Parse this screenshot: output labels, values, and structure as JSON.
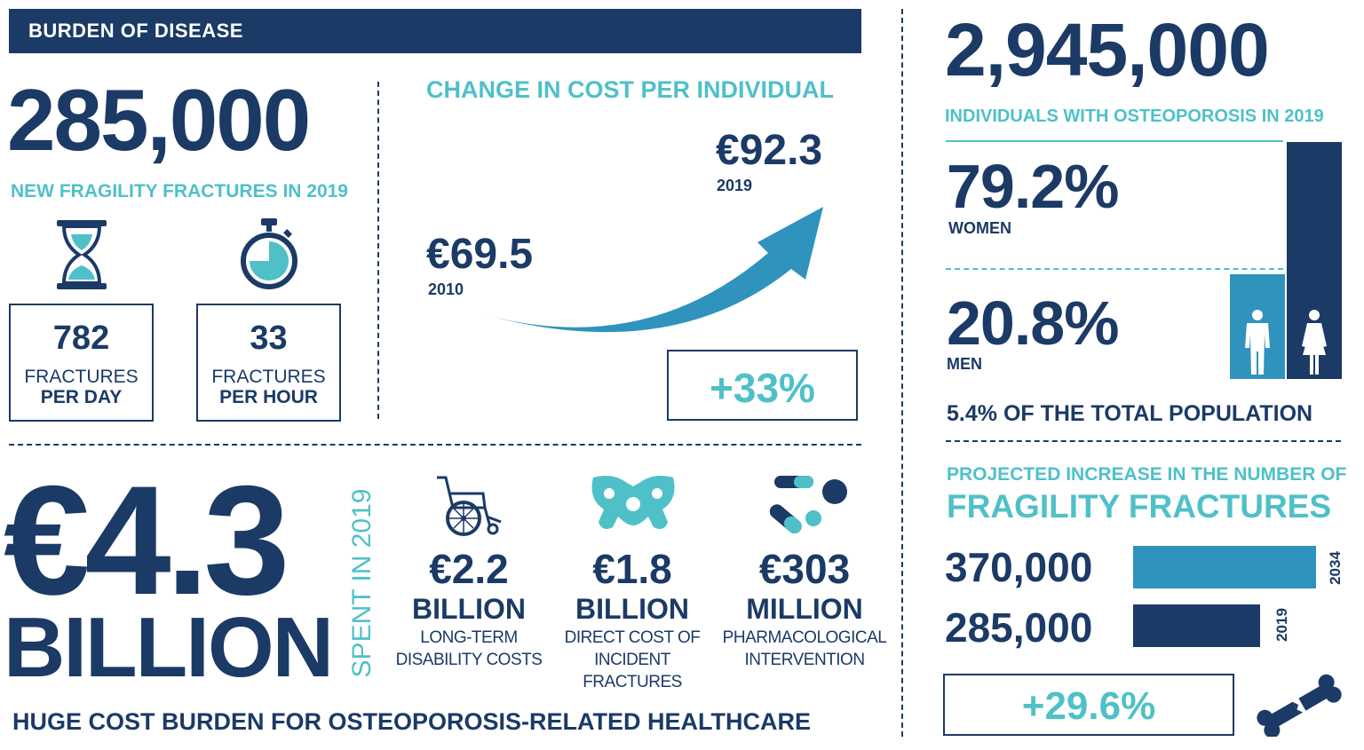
{
  "header": {
    "title": "BURDEN OF DISEASE"
  },
  "fractures": {
    "value": "285,000",
    "label": "NEW FRAGILITY FRACTURES IN 2019",
    "per_day_value": "782",
    "per_day_l1": "FRACTURES",
    "per_day_l2": "PER DAY",
    "per_hour_value": "33",
    "per_hour_l1": "FRACTURES",
    "per_hour_l2": "PER HOUR"
  },
  "cost_change": {
    "title": "CHANGE IN COST PER INDIVIDUAL",
    "start_value": "€69.5",
    "start_year": "2010",
    "end_value": "€92.3",
    "end_year": "2019",
    "change": "+33%"
  },
  "osteoporosis": {
    "value": "2,945,000",
    "label": "INDIVIDUALS WITH OSTEOPOROSIS IN 2019",
    "women_pct": "79.2%",
    "women_label": "WOMEN",
    "men_pct": "20.8%",
    "men_label": "MEN",
    "population_pct": "5.4%",
    "population_text": "OF THE TOTAL POPULATION"
  },
  "spending": {
    "value": "€4.3",
    "unit": "BILLION",
    "side_label": "SPENT IN 2019",
    "items": [
      {
        "value": "€2.2",
        "unit": "BILLION",
        "desc1": "LONG-TERM",
        "desc2": "DISABILITY COSTS",
        "desc3": ""
      },
      {
        "value": "€1.8",
        "unit": "BILLION",
        "desc1": "DIRECT COST OF",
        "desc2": "INCIDENT",
        "desc3": "FRACTURES"
      },
      {
        "value": "€303",
        "unit": "MILLION",
        "desc1": "PHARMACOLOGICAL",
        "desc2": "INTERVENTION",
        "desc3": ""
      }
    ],
    "footer": "HUGE COST BURDEN FOR OSTEOPOROSIS-RELATED HEALTHCARE"
  },
  "projection": {
    "title1": "PROJECTED INCREASE IN THE NUMBER OF",
    "title2": "FRAGILITY FRACTURES",
    "rows": [
      {
        "value": "370,000",
        "year": "2034",
        "amount": 370000
      },
      {
        "value": "285,000",
        "year": "2019",
        "amount": 285000
      }
    ],
    "change": "+29.6%"
  },
  "colors": {
    "navy": "#1b3a66",
    "teal": "#4fc0c8",
    "blue": "#2f93bd"
  },
  "icons": [
    "hourglass-icon",
    "stopwatch-icon",
    "wheelchair-icon",
    "pelvis-icon",
    "pills-icon",
    "male-icon",
    "female-icon",
    "broken-bone-icon"
  ]
}
